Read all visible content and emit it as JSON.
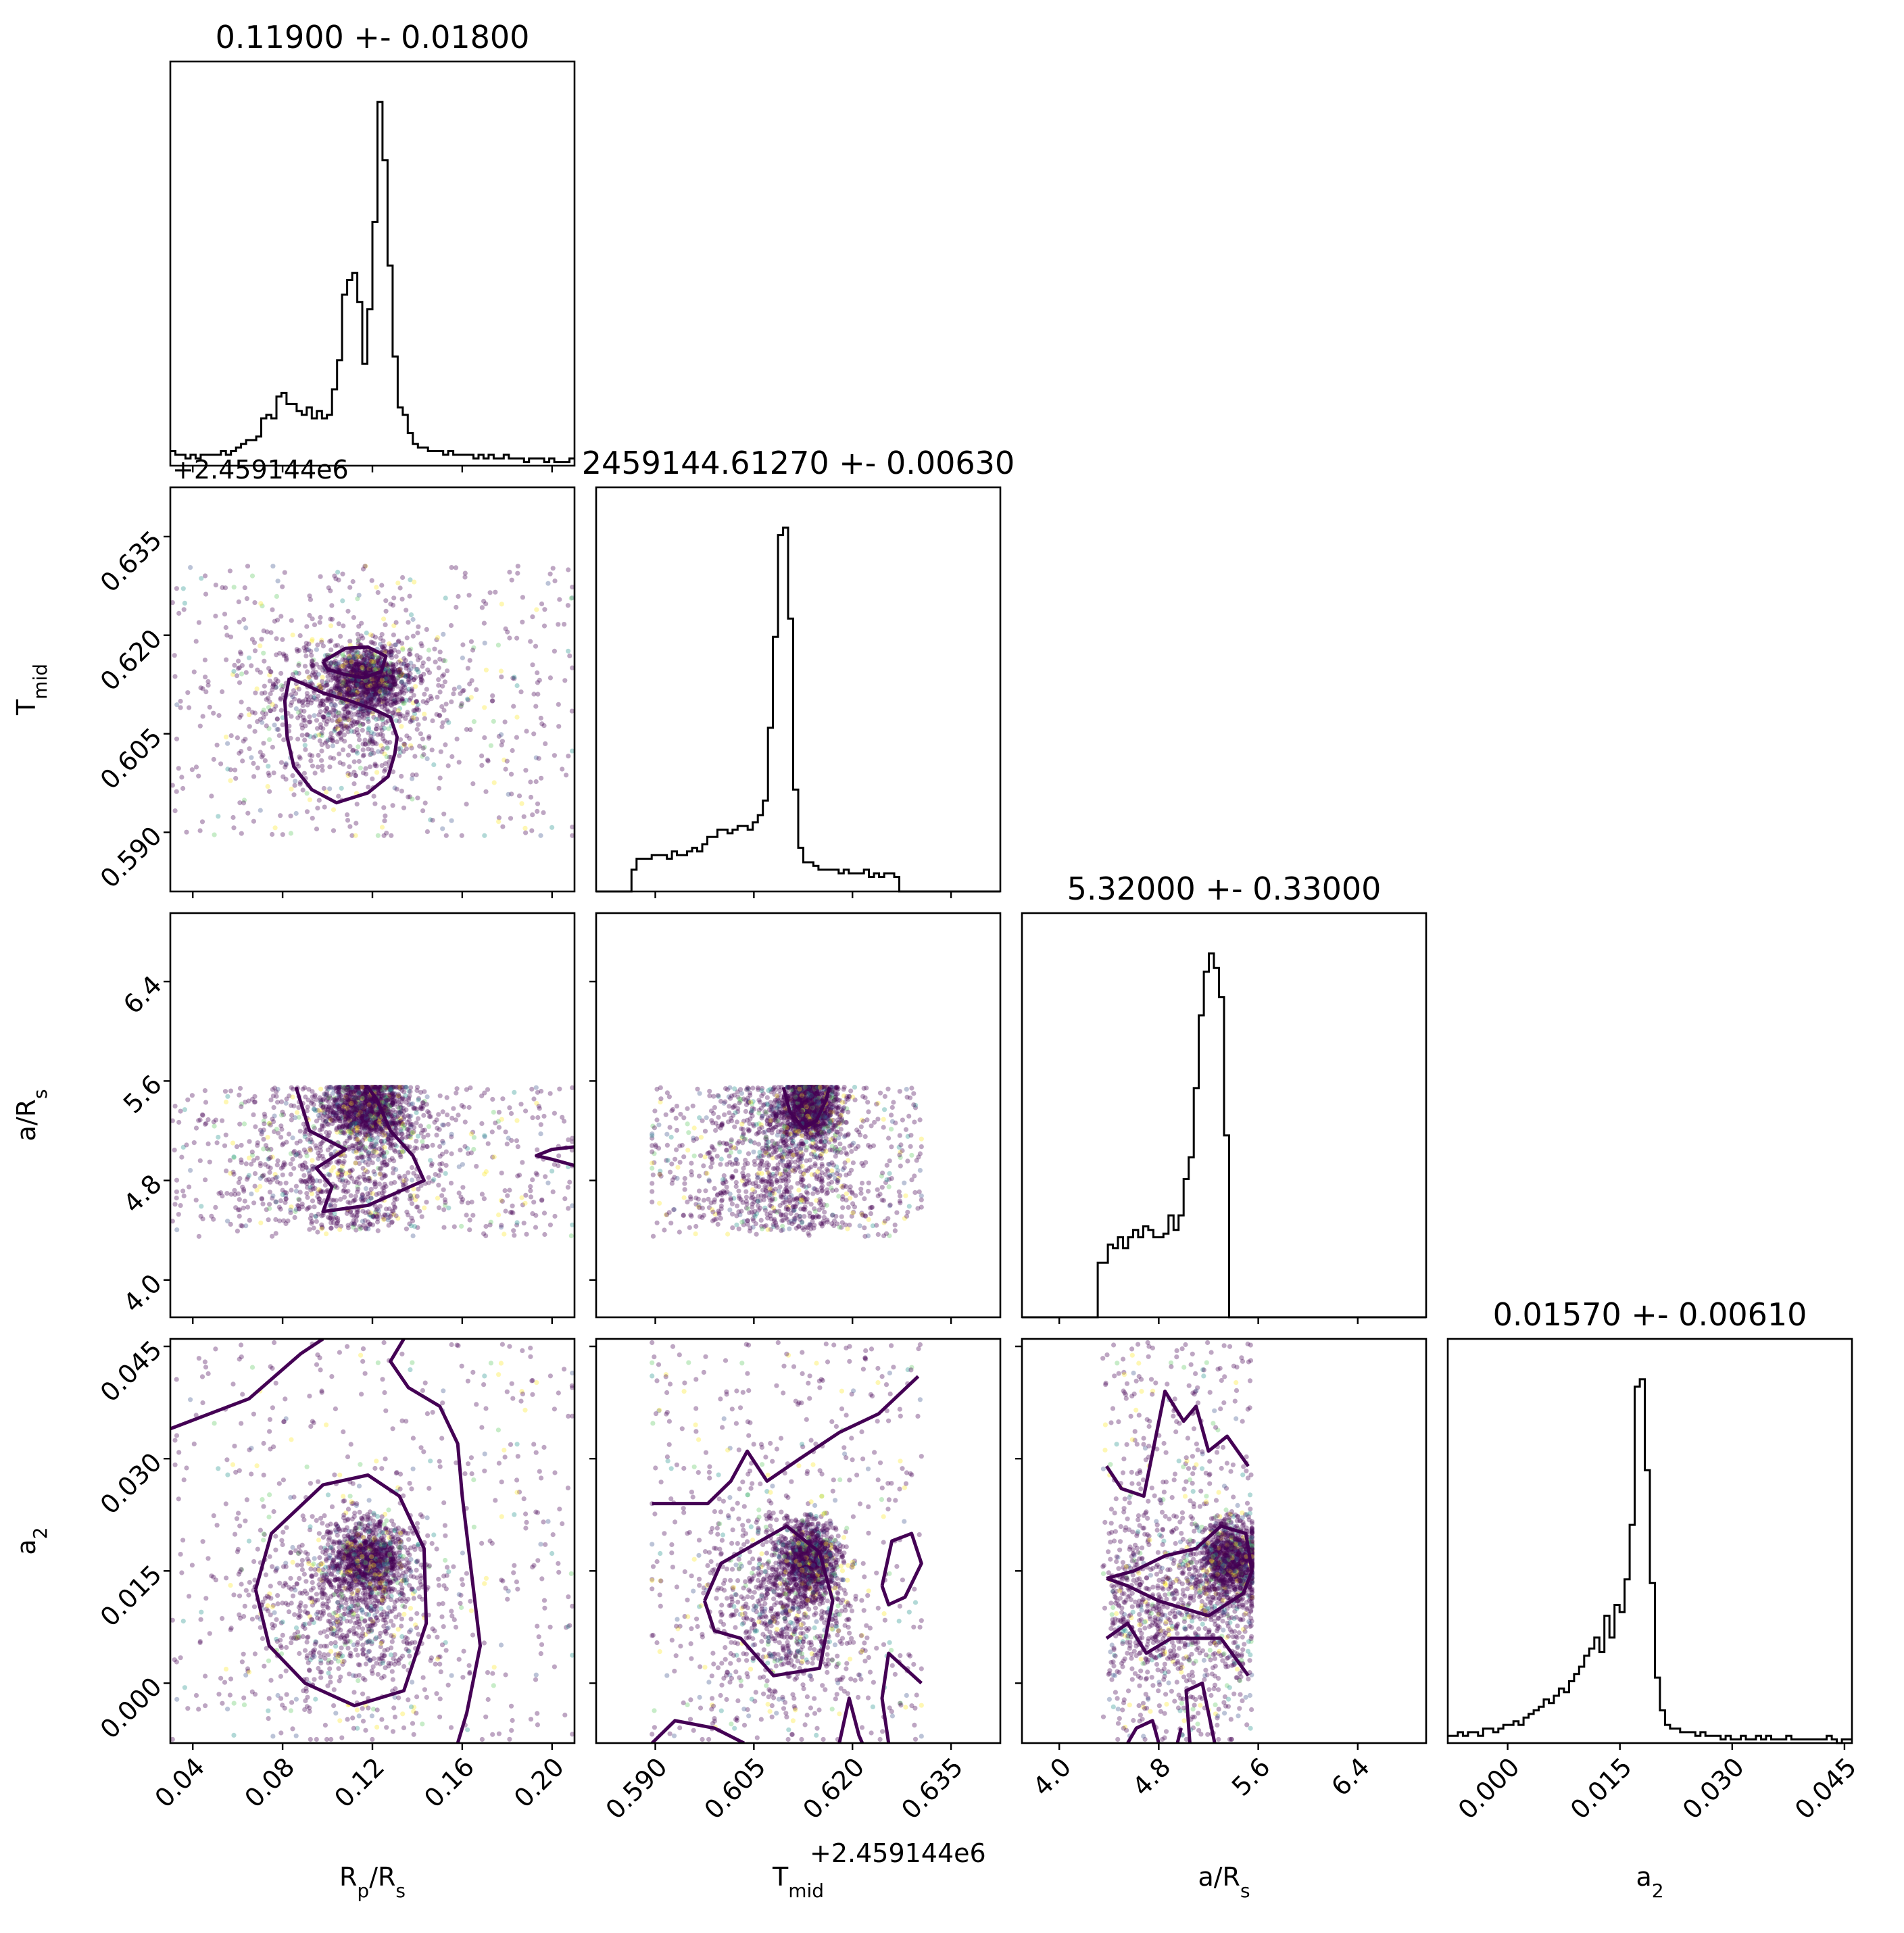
{
  "chart_data": {
    "type": "scatter",
    "layout": "corner-plot",
    "parameters": [
      {
        "key": "rp",
        "label": "R",
        "label_sub": "p",
        "label_rest": "/R",
        "label_sub2": "s",
        "range": [
          0.03,
          0.21
        ],
        "ticks": [
          0.04,
          0.08,
          0.12,
          0.16,
          0.2
        ],
        "tick_labels": [
          "0.04",
          "0.08",
          "0.12",
          "0.16",
          "0.20"
        ],
        "title": "0.11900 +- 0.01800",
        "offset": ""
      },
      {
        "key": "tmid",
        "label": "T",
        "label_sub": "mid",
        "label_rest": "",
        "label_sub2": "",
        "range": [
          0.581,
          0.6425
        ],
        "ticks": [
          0.59,
          0.605,
          0.62,
          0.635
        ],
        "tick_labels": [
          "0.590",
          "0.605",
          "0.620",
          "0.635"
        ],
        "title": "2459144.61270 +- 0.00630",
        "offset": "+2.459144e6"
      },
      {
        "key": "a",
        "label": "a/R",
        "label_sub": "s",
        "label_rest": "",
        "label_sub2": "",
        "range": [
          3.7,
          6.95
        ],
        "ticks": [
          4.0,
          4.8,
          5.6,
          6.4
        ],
        "tick_labels": [
          "4.0",
          "4.8",
          "5.6",
          "6.4"
        ],
        "title": "5.32000 +- 0.33000",
        "offset": ""
      },
      {
        "key": "a2",
        "label": "a",
        "label_sub": "2",
        "label_rest": "",
        "label_sub2": "",
        "range": [
          -0.008,
          0.046
        ],
        "ticks": [
          0.0,
          0.015,
          0.03,
          0.045
        ],
        "tick_labels": [
          "0.000",
          "0.015",
          "0.030",
          "0.045"
        ],
        "title": "0.01570 +- 0.00610",
        "offset": ""
      }
    ],
    "histograms": {
      "rp": {
        "bins": [
          0.03,
          0.21
        ],
        "counts": [
          4,
          3,
          3,
          2,
          3,
          2,
          3,
          3,
          3,
          3,
          4,
          3,
          4,
          5,
          6,
          7,
          7,
          8,
          13,
          14,
          13,
          19,
          20,
          17,
          17,
          15,
          14,
          16,
          13,
          15,
          13,
          14,
          21,
          29,
          47,
          51,
          53,
          45,
          28,
          43,
          67,
          100,
          84,
          55,
          30,
          16,
          14,
          9,
          6,
          5,
          5,
          4,
          4,
          4,
          3,
          4,
          3,
          3,
          3,
          3,
          2,
          3,
          2,
          3,
          2,
          2,
          3,
          2,
          2,
          2,
          1,
          2,
          2,
          2,
          1,
          2,
          1,
          1,
          1,
          2
        ]
      },
      "tmid": {
        "bins": [
          0.581,
          0.6425
        ],
        "counts": [
          0,
          0,
          0,
          0,
          0,
          0,
          0,
          6,
          9,
          9,
          9,
          10,
          10,
          10,
          9,
          11,
          10,
          10,
          11,
          12,
          11,
          13,
          15,
          15,
          17,
          17,
          16,
          17,
          18,
          18,
          17,
          19,
          21,
          25,
          45,
          70,
          98,
          100,
          75,
          28,
          12,
          8,
          8,
          7,
          6,
          6,
          6,
          6,
          5,
          6,
          5,
          5,
          5,
          6,
          4,
          5,
          4,
          5,
          5,
          4,
          0,
          0,
          0,
          0,
          0,
          0,
          0,
          0,
          0,
          0,
          0,
          0,
          0,
          0,
          0,
          0,
          0,
          0,
          0,
          0
        ]
      },
      "a": {
        "bins": [
          3.7,
          6.95
        ],
        "counts": [
          0,
          0,
          0,
          0,
          0,
          0,
          0,
          0,
          0,
          0,
          0,
          0,
          0,
          0,
          0,
          15,
          15,
          20,
          19,
          22,
          19,
          22,
          24,
          22,
          25,
          24,
          22,
          22,
          23,
          28,
          24,
          28,
          38,
          44,
          63,
          83,
          95,
          100,
          96,
          88,
          50,
          0,
          0,
          0,
          0,
          0,
          0,
          0,
          0,
          0,
          0,
          0,
          0,
          0,
          0,
          0,
          0,
          0,
          0,
          0,
          0,
          0,
          0,
          0,
          0,
          0,
          0,
          0,
          0,
          0,
          0,
          0,
          0,
          0,
          0,
          0,
          0,
          0,
          0,
          0
        ]
      },
      "a2": {
        "bins": [
          -0.008,
          0.046
        ],
        "counts": [
          2,
          2,
          3,
          2,
          3,
          3,
          2,
          4,
          4,
          3,
          4,
          5,
          5,
          6,
          5,
          7,
          8,
          9,
          10,
          12,
          11,
          13,
          15,
          14,
          17,
          19,
          21,
          24,
          26,
          29,
          25,
          35,
          29,
          38,
          36,
          45,
          60,
          98,
          100,
          75,
          44,
          18,
          9,
          5,
          4,
          4,
          3,
          3,
          3,
          2,
          3,
          2,
          2,
          2,
          1,
          2,
          1,
          1,
          2,
          1,
          1,
          2,
          1,
          2,
          1,
          1,
          1,
          2,
          1,
          1,
          1,
          1,
          1,
          1,
          1,
          2,
          1,
          0,
          1,
          1
        ]
      }
    },
    "colormap": "viridis",
    "contour_color": "#440154",
    "secondary_contour_color": "#fde725",
    "point_colors": [
      "#440154",
      "#3b528b",
      "#21918c",
      "#5ec962",
      "#fde725"
    ],
    "point_weights": [
      0.8,
      0.05,
      0.05,
      0.04,
      0.06
    ]
  }
}
